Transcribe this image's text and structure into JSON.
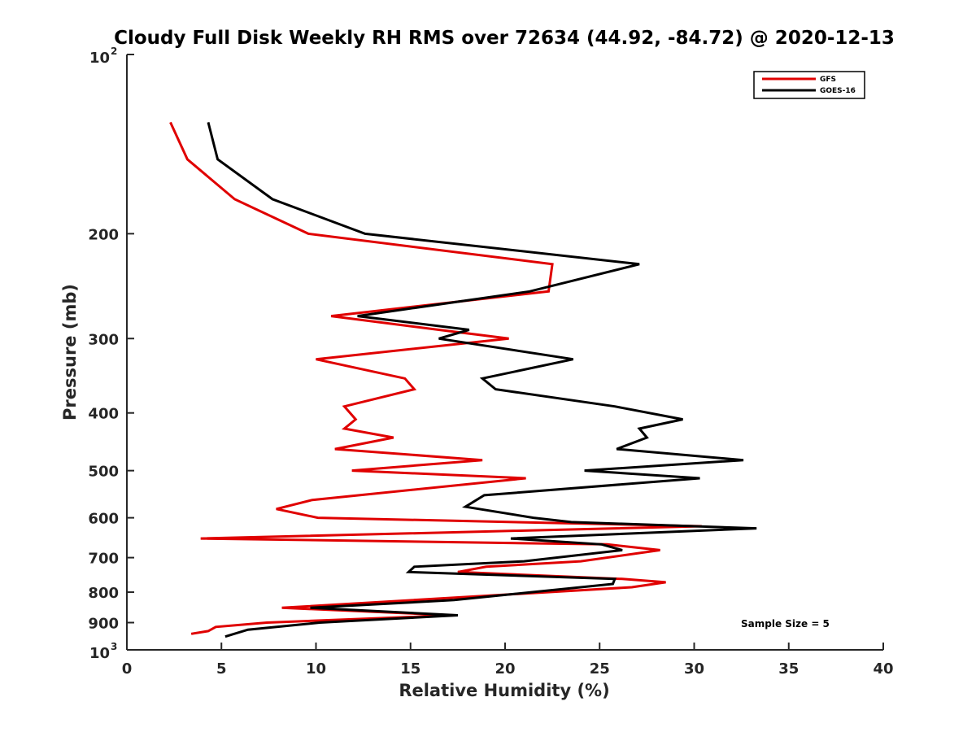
{
  "chart_data": {
    "type": "line",
    "title": "Cloudy Full Disk Weekly RH RMS over 72634 (44.92, -84.72) @ 2020-12-13",
    "xlabel": "Relative Humidity (%)",
    "ylabel": "Pressure (mb)",
    "xlim": [
      0,
      40
    ],
    "ylim": [
      100,
      1000
    ],
    "y_scale": "log",
    "y_reversed": true,
    "xticks": [
      "0",
      "5",
      "10",
      "15",
      "20",
      "25",
      "30",
      "35",
      "40"
    ],
    "yticks": [
      {
        "value": 100,
        "base": "10",
        "exp": "2"
      },
      {
        "value": 200,
        "label": "200"
      },
      {
        "value": 300,
        "label": "300"
      },
      {
        "value": 400,
        "label": "400"
      },
      {
        "value": 500,
        "label": "500"
      },
      {
        "value": 600,
        "label": "600"
      },
      {
        "value": 700,
        "label": "700"
      },
      {
        "value": 800,
        "label": "800"
      },
      {
        "value": 900,
        "label": "900"
      },
      {
        "value": 1000,
        "base": "10",
        "exp": "3"
      }
    ],
    "legend": {
      "position": "top-right"
    },
    "annotation": "Sample Size = 5",
    "series": [
      {
        "name": "GFS",
        "color": "#e00000",
        "points": [
          [
            2.3,
            130
          ],
          [
            3.2,
            150
          ],
          [
            5.7,
            175
          ],
          [
            9.6,
            200
          ],
          [
            22.5,
            225
          ],
          [
            22.3,
            250
          ],
          [
            10.8,
            275
          ],
          [
            16.5,
            290
          ],
          [
            20.2,
            300
          ],
          [
            10.0,
            325
          ],
          [
            14.7,
            350
          ],
          [
            15.2,
            365
          ],
          [
            11.5,
            390
          ],
          [
            12.1,
            410
          ],
          [
            11.5,
            425
          ],
          [
            14.1,
            440
          ],
          [
            11.0,
            460
          ],
          [
            18.8,
            480
          ],
          [
            11.9,
            500
          ],
          [
            21.1,
            515
          ],
          [
            9.8,
            560
          ],
          [
            7.9,
            580
          ],
          [
            10.1,
            600
          ],
          [
            30.4,
            620
          ],
          [
            3.9,
            650
          ],
          [
            25.4,
            665
          ],
          [
            28.2,
            680
          ],
          [
            24.0,
            710
          ],
          [
            19.0,
            725
          ],
          [
            17.5,
            740
          ],
          [
            26.2,
            760
          ],
          [
            28.5,
            770
          ],
          [
            26.7,
            785
          ],
          [
            8.2,
            850
          ],
          [
            17.3,
            875
          ],
          [
            7.4,
            900
          ],
          [
            4.7,
            915
          ],
          [
            4.3,
            930
          ],
          [
            3.4,
            940
          ]
        ]
      },
      {
        "name": "GOES-16",
        "color": "#000000",
        "points": [
          [
            4.3,
            130
          ],
          [
            4.8,
            150
          ],
          [
            7.7,
            175
          ],
          [
            12.6,
            200
          ],
          [
            27.1,
            225
          ],
          [
            21.3,
            250
          ],
          [
            12.2,
            275
          ],
          [
            18.1,
            290
          ],
          [
            16.5,
            300
          ],
          [
            23.6,
            325
          ],
          [
            18.8,
            350
          ],
          [
            19.5,
            365
          ],
          [
            25.8,
            390
          ],
          [
            29.4,
            410
          ],
          [
            27.1,
            425
          ],
          [
            27.5,
            440
          ],
          [
            25.9,
            460
          ],
          [
            32.6,
            480
          ],
          [
            24.2,
            500
          ],
          [
            30.3,
            515
          ],
          [
            18.9,
            550
          ],
          [
            17.9,
            575
          ],
          [
            21.5,
            600
          ],
          [
            23.5,
            610
          ],
          [
            33.3,
            625
          ],
          [
            20.3,
            650
          ],
          [
            25.1,
            665
          ],
          [
            26.2,
            680
          ],
          [
            21.0,
            710
          ],
          [
            15.2,
            725
          ],
          [
            14.9,
            740
          ],
          [
            25.8,
            760
          ],
          [
            25.7,
            775
          ],
          [
            17.3,
            825
          ],
          [
            9.7,
            850
          ],
          [
            17.5,
            875
          ],
          [
            10.2,
            900
          ],
          [
            6.4,
            925
          ],
          [
            5.2,
            950
          ]
        ]
      }
    ]
  }
}
